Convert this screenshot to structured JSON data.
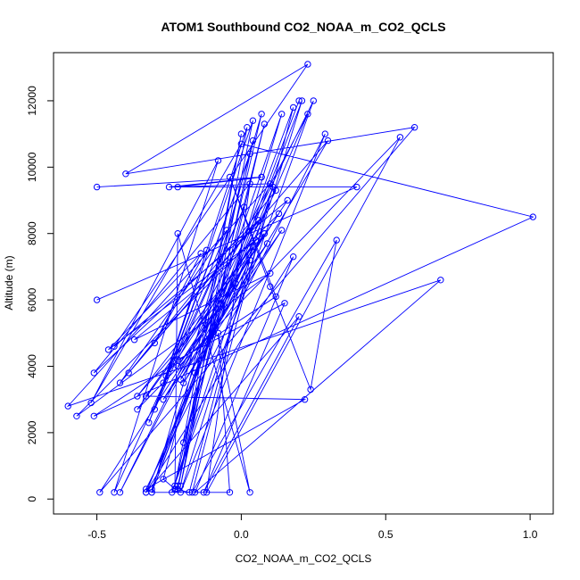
{
  "chart_data": {
    "type": "line",
    "title": "ATOM1 Southbound CO2_NOAA_m_CO2_QCLS",
    "xlabel": "CO2_NOAA_m_CO2_QCLS",
    "ylabel": "Altitude (m)",
    "xlim": [
      -0.65,
      1.08
    ],
    "ylim": [
      -450,
      13450
    ],
    "xticks": [
      -0.5,
      0.0,
      0.5,
      1.0
    ],
    "xtick_labels": [
      "-0.5",
      "0.0",
      "0.5",
      "1.0"
    ],
    "yticks": [
      0,
      2000,
      4000,
      6000,
      8000,
      10000,
      12000
    ],
    "ytick_labels": [
      "0",
      "2000",
      "4000",
      "6000",
      "8000",
      "10000",
      "12000"
    ],
    "grid": false,
    "legend": "none",
    "series_color": "#0000ff",
    "marker": "open-circle",
    "series": [
      {
        "x": [
          -0.5,
          0.4,
          -0.25,
          0.07,
          -0.5,
          0.07,
          -0.22,
          0.1,
          -0.6,
          0.69,
          -0.16,
          0.18,
          -0.33,
          0.2,
          -0.13,
          0.15,
          -0.22,
          0.23,
          -0.33,
          0.11,
          -0.24,
          0.25,
          -0.42,
          0.12,
          -0.39,
          0.3,
          -0.2,
          0.14,
          -0.27,
          0.08,
          -0.36,
          0.55,
          -0.12,
          0.03,
          -0.51,
          0.06,
          -0.42,
          -0.05,
          -0.32,
          0.03,
          -0.3,
          0.01,
          -0.44,
          -0.08,
          -0.52,
          0.0,
          1.01,
          -0.51,
          0.12,
          -0.04,
          0.1,
          0.24,
          0.33,
          -0.17,
          0.18,
          -0.31,
          0.14,
          -0.2,
          0.08,
          -0.22,
          -0.23,
          -0.27,
          0.04,
          -0.21,
          0.02,
          -0.27,
          0.04,
          -0.22,
          0.0,
          -0.23,
          0.07,
          -0.31,
          0.21,
          -0.21,
          0.29,
          -0.33,
          0.22,
          -0.33,
          0.05,
          -0.26,
          -0.12,
          -0.3,
          -0.14,
          -0.46,
          0.08,
          -0.37,
          0.1,
          -0.57,
          0.13,
          -0.49,
          0.6,
          -0.4,
          0.23,
          -0.44,
          0.16,
          -0.22,
          0.09,
          -0.21,
          -0.02,
          -0.36,
          0.04,
          -0.16,
          0.03,
          -0.18,
          -0.23,
          -0.22,
          0.03,
          -0.08,
          -0.04,
          -0.31,
          0.2
        ],
        "y": [
          6000,
          9400,
          9400,
          9700,
          9400,
          9700,
          9400,
          9500,
          2800,
          6600,
          200,
          7300,
          200,
          5500,
          200,
          5900,
          4200,
          11600,
          200,
          9400,
          200,
          12000,
          200,
          9300,
          3800,
          10800,
          3500,
          8100,
          3000,
          8000,
          2700,
          10900,
          200,
          9500,
          3800,
          8400,
          3500,
          8100,
          2300,
          10400,
          2700,
          8800,
          200,
          10200,
          2900,
          10700,
          8500,
          2500,
          6100,
          9700,
          6400,
          3300,
          7800,
          200,
          11800,
          300,
          11600,
          1700,
          11300,
          400,
          300,
          600,
          10800,
          400,
          11200,
          3500,
          11400,
          300,
          11000,
          400,
          11600,
          200,
          12000,
          200,
          11000,
          300,
          3000,
          3100,
          7800,
          3700,
          7500,
          4700,
          7400,
          4500,
          8000,
          4800,
          6800,
          2500,
          8600,
          200,
          11200,
          9800,
          13100,
          4600,
          9000,
          4000,
          7700,
          3600,
          6500,
          3100,
          7600,
          3800,
          7200,
          200,
          300,
          8000,
          200,
          5000,
          200,
          200,
          12000
        ]
      }
    ]
  }
}
